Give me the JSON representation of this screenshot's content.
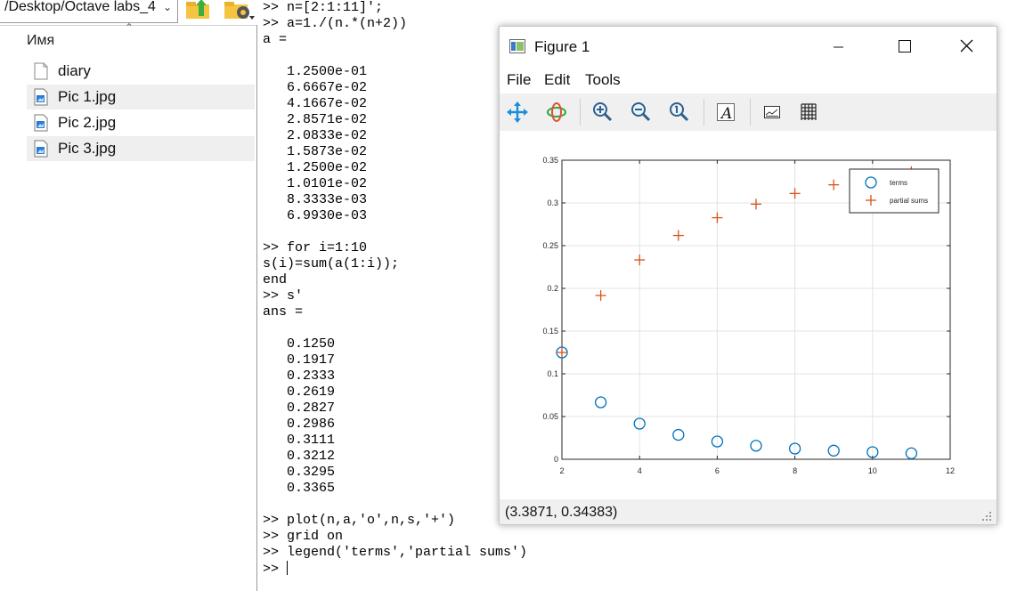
{
  "file_browser": {
    "path": "/Desktop/Octave labs_4",
    "column_header": "Имя",
    "files": [
      {
        "name": "diary",
        "icon": "document-icon"
      },
      {
        "name": "Pic 1.jpg",
        "icon": "image-file-icon"
      },
      {
        "name": "Pic 2.jpg",
        "icon": "image-file-icon"
      },
      {
        "name": "Pic 3.jpg",
        "icon": "image-file-icon"
      }
    ]
  },
  "console": {
    "lines": [
      ">> n=[2:1:11]';",
      ">> a=1./(n.*(n+2))",
      "a =",
      "",
      "   1.2500e-01",
      "   6.6667e-02",
      "   4.1667e-02",
      "   2.8571e-02",
      "   2.0833e-02",
      "   1.5873e-02",
      "   1.2500e-02",
      "   1.0101e-02",
      "   8.3333e-03",
      "   6.9930e-03",
      "",
      ">> for i=1:10",
      "s(i)=sum(a(1:i));",
      "end",
      ">> s'",
      "ans =",
      "",
      "   0.1250",
      "   0.1917",
      "   0.2333",
      "   0.2619",
      "   0.2827",
      "   0.2986",
      "   0.3111",
      "   0.3212",
      "   0.3295",
      "   0.3365",
      "",
      ">> plot(n,a,'o',n,s,'+')",
      ">> grid on",
      ">> legend('terms','partial sums')"
    ],
    "prompt": ">> "
  },
  "figure": {
    "title": "Figure 1",
    "menu": [
      "File",
      "Edit",
      "Tools"
    ],
    "toolbar": [
      "pan-icon",
      "rotate-icon",
      "zoom-in-icon",
      "zoom-out-icon",
      "zoom-reset-icon",
      "text-annotation-icon",
      "toggle-axes-icon",
      "toggle-grid-icon"
    ],
    "status": "(3.3871, 0.34383)"
  },
  "colors": {
    "terms": "#0072bd",
    "partial_sums": "#d95319",
    "grid": "#e3e3e3"
  },
  "chart_data": {
    "type": "scatter",
    "title": "",
    "xlabel": "",
    "ylabel": "",
    "xlim": [
      2,
      12
    ],
    "ylim": [
      0,
      0.35
    ],
    "xticks": [
      2,
      4,
      6,
      8,
      10,
      12
    ],
    "yticks": [
      0,
      0.05,
      0.1,
      0.15,
      0.2,
      0.25,
      0.3,
      0.35
    ],
    "xtick_labels": [
      "2",
      "4",
      "6",
      "8",
      "10",
      "12"
    ],
    "ytick_labels": [
      "0",
      "0.05",
      "0.1",
      "0.15",
      "0.2",
      "0.25",
      "0.3",
      "0.35"
    ],
    "grid": true,
    "legend_position": "top-right",
    "series": [
      {
        "name": "terms",
        "marker": "o",
        "x": [
          2,
          3,
          4,
          5,
          6,
          7,
          8,
          9,
          10,
          11
        ],
        "y": [
          0.125,
          0.066667,
          0.041667,
          0.028571,
          0.020833,
          0.015873,
          0.0125,
          0.010101,
          0.008333,
          0.006993
        ]
      },
      {
        "name": "partial sums",
        "marker": "+",
        "x": [
          2,
          3,
          4,
          5,
          6,
          7,
          8,
          9,
          10,
          11
        ],
        "y": [
          0.125,
          0.1917,
          0.2333,
          0.2619,
          0.2827,
          0.2986,
          0.3111,
          0.3212,
          0.3295,
          0.3365
        ]
      }
    ]
  }
}
